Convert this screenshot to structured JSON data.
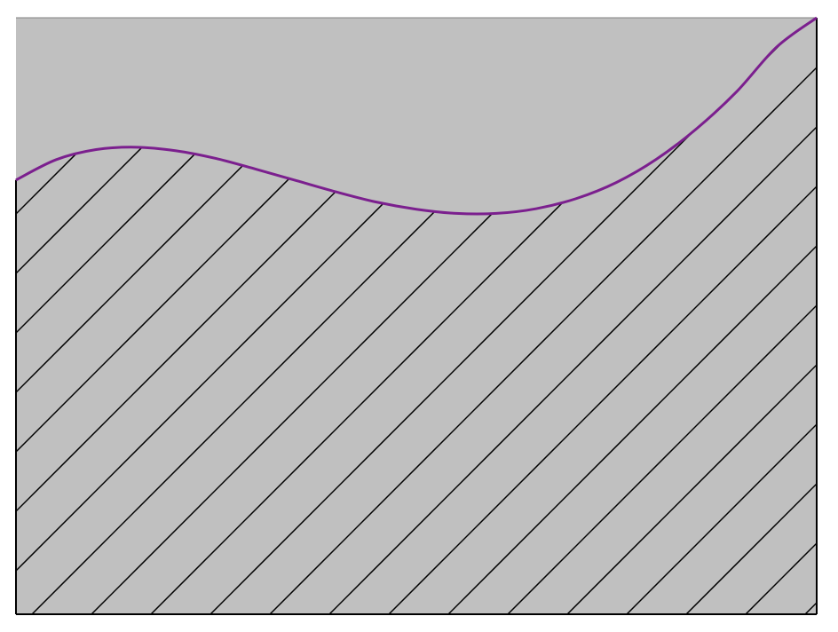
{
  "chart_data": {
    "type": "area",
    "title": "",
    "xlabel": "",
    "ylabel": "",
    "xlim": [
      0,
      1
    ],
    "ylim": [
      0,
      1
    ],
    "grid": false,
    "fill": "hatched",
    "x": [
      0.0,
      0.05,
      0.1,
      0.15,
      0.2,
      0.25,
      0.3,
      0.35,
      0.4,
      0.45,
      0.5,
      0.55,
      0.6,
      0.65,
      0.7,
      0.75,
      0.8,
      0.85,
      0.9,
      0.95,
      1.0
    ],
    "series": [
      {
        "values": [
          0.728,
          0.762,
          0.779,
          0.783,
          0.777,
          0.764,
          0.746,
          0.727,
          0.708,
          0.691,
          0.679,
          0.672,
          0.672,
          0.68,
          0.697,
          0.724,
          0.763,
          0.814,
          0.876,
          0.951,
          1.0
        ]
      }
    ]
  },
  "colors": {
    "background": "#c0c0c0",
    "curve": "#7b1f8e",
    "hatch": "#000000",
    "axes": "#000000",
    "top_border": "#808080"
  }
}
